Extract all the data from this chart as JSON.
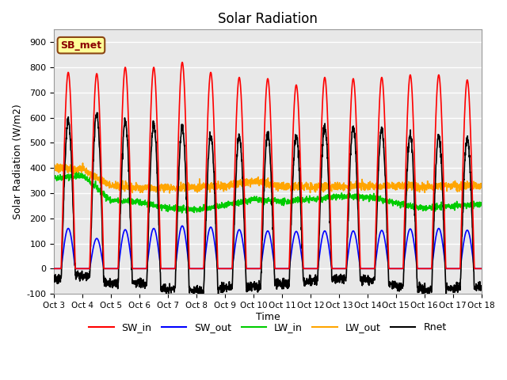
{
  "title": "Solar Radiation",
  "xlabel": "Time",
  "ylabel": "Solar Radiation (W/m2)",
  "ylim": [
    -100,
    950
  ],
  "yticks": [
    -100,
    0,
    100,
    200,
    300,
    400,
    500,
    600,
    700,
    800,
    900
  ],
  "num_days": 15,
  "label_box_text": "SB_met",
  "label_box_facecolor": "#FFFF99",
  "label_box_edgecolor": "#8B4513",
  "bg_color": "#E8E8E8",
  "grid_color": "white",
  "lines": {
    "SW_in": {
      "color": "#FF0000",
      "lw": 1.2
    },
    "SW_out": {
      "color": "#0000FF",
      "lw": 1.2
    },
    "LW_in": {
      "color": "#00CC00",
      "lw": 1.2
    },
    "LW_out": {
      "color": "#FFA500",
      "lw": 1.2
    },
    "Rnet": {
      "color": "#000000",
      "lw": 1.2
    }
  },
  "tick_labels": [
    "Oct 3",
    "Oct 4",
    "Oct 5",
    "Oct 6",
    "Oct 7",
    "Oct 8",
    "Oct 9",
    "Oct 10",
    "Oct 11",
    "Oct 12",
    "Oct 13",
    "Oct 14",
    "Oct 15",
    "Oct 16",
    "Oct 17",
    "Oct 18"
  ],
  "SW_in_peaks": [
    780,
    775,
    800,
    800,
    820,
    780,
    760,
    755,
    730,
    760,
    755,
    760,
    770,
    770,
    750
  ],
  "SW_out_peaks": [
    160,
    120,
    155,
    160,
    170,
    165,
    155,
    150,
    148,
    150,
    150,
    152,
    158,
    160,
    153
  ],
  "LW_in_day_vals": [
    360,
    370,
    270,
    265,
    240,
    235,
    250,
    275,
    265,
    275,
    285,
    285,
    260,
    240,
    250,
    255
  ],
  "LW_out_day_vals": [
    400,
    395,
    330,
    320,
    320,
    325,
    330,
    350,
    325,
    325,
    325,
    330,
    330,
    325,
    330,
    330
  ]
}
